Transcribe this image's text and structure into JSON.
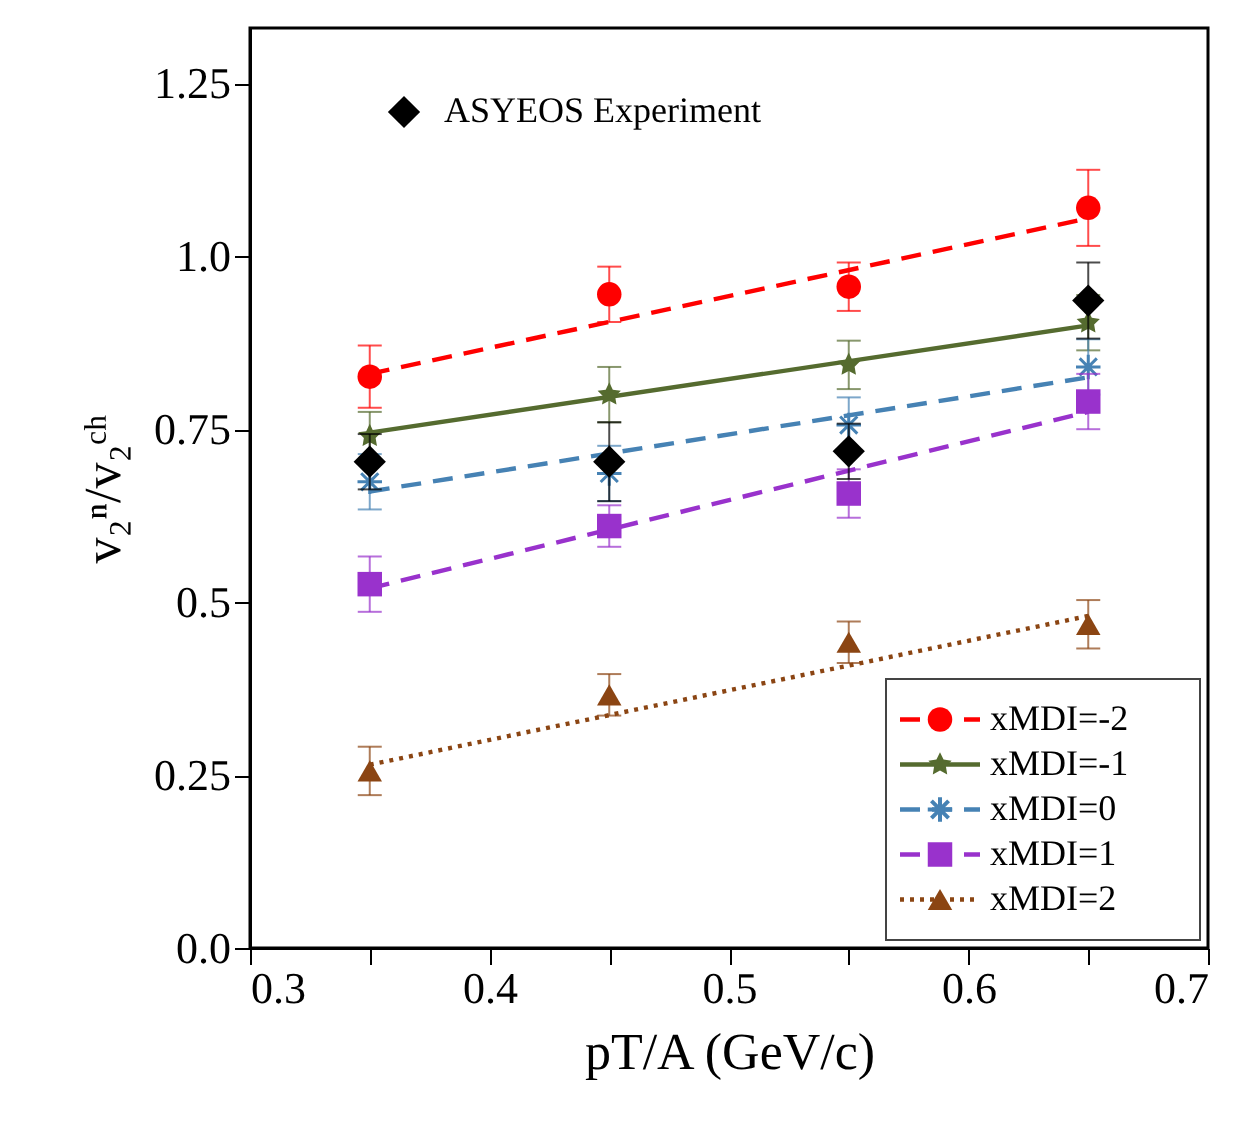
{
  "chart_data": {
    "type": "scatter",
    "xlabel": "pT/A (GeV/c)",
    "ylabel": "v₂ⁿ/v₂ᶜʰ",
    "xlim": [
      0.3,
      0.7
    ],
    "ylim": [
      0,
      1.33
    ],
    "xticks": [
      {
        "value": 0.3,
        "label": "0.3"
      },
      {
        "value": 0.35,
        "label": null
      },
      {
        "value": 0.4,
        "label": "0.4"
      },
      {
        "value": 0.45,
        "label": null
      },
      {
        "value": 0.5,
        "label": "0.5"
      },
      {
        "value": 0.55,
        "label": null
      },
      {
        "value": 0.6,
        "label": "0.6"
      },
      {
        "value": 0.65,
        "label": null
      },
      {
        "value": 0.7,
        "label": "0.7"
      }
    ],
    "yticks": [
      {
        "value": 0,
        "label": "0.0"
      },
      0.25,
      0.5,
      0.75,
      {
        "value": 1,
        "label": "1.0"
      },
      1.25
    ],
    "legend": "bottom right",
    "grid": false,
    "series": [
      {
        "type": "line",
        "color": "#ff0000",
        "line_style": "dashed",
        "x": [
          0.35,
          0.65
        ],
        "values": [
          0.83,
          1.055
        ]
      },
      {
        "type": "line",
        "color": "#556b2f",
        "line_style": "solid",
        "x": [
          0.35,
          0.65
        ],
        "values": [
          0.745,
          0.9
        ]
      },
      {
        "type": "line",
        "color": "#4682b4",
        "line_style": "dashed",
        "x": [
          0.35,
          0.65
        ],
        "values": [
          0.66,
          0.825
        ]
      },
      {
        "type": "line",
        "color": "#9932cc",
        "line_style": "dashed",
        "x": [
          0.35,
          0.65
        ],
        "values": [
          0.52,
          0.775
        ]
      },
      {
        "type": "line",
        "color": "#8b4513",
        "line_style": "dotted",
        "x": [
          0.35,
          0.65
        ],
        "values": [
          0.265,
          0.48
        ]
      },
      {
        "name": "xMDI=-2",
        "color": "#ff0000",
        "marker": "circle",
        "line_style": "dashed",
        "x": [
          0.35,
          0.45,
          0.55,
          0.65
        ],
        "values": [
          0.826,
          0.945,
          0.956,
          1.07
        ],
        "errors": [
          0.045,
          0.04,
          0.035,
          0.055
        ]
      },
      {
        "name": "xMDI=-1",
        "color": "#556b2f",
        "marker": "star",
        "line_style": "solid",
        "x": [
          0.35,
          0.45,
          0.55,
          0.65
        ],
        "values": [
          0.74,
          0.8,
          0.843,
          0.904
        ],
        "errors": [
          0.035,
          0.04,
          0.035,
          0.04
        ]
      },
      {
        "name": "xMDI=0",
        "color": "#4682b4",
        "marker": "cross",
        "line_style": "dashed",
        "x": [
          0.35,
          0.45,
          0.55,
          0.65
        ],
        "values": [
          0.674,
          0.686,
          0.756,
          0.84
        ],
        "errors": [
          0.04,
          0.04,
          0.04,
          0.04
        ]
      },
      {
        "name": "xMDI=1",
        "color": "#9932cc",
        "marker": "square",
        "line_style": "dashed",
        "x": [
          0.35,
          0.45,
          0.55,
          0.65
        ],
        "values": [
          0.526,
          0.61,
          0.657,
          0.79
        ],
        "errors": [
          0.04,
          0.03,
          0.035,
          0.04
        ]
      },
      {
        "name": "xMDI=2",
        "color": "#8b4513",
        "marker": "triangle",
        "line_style": "dotted",
        "x": [
          0.35,
          0.45,
          0.55,
          0.65
        ],
        "values": [
          0.256,
          0.366,
          0.442,
          0.468
        ],
        "errors": [
          0.035,
          0.03,
          0.03,
          0.035
        ]
      },
      {
        "name": "ASYEOS Experiment",
        "color": "#000000",
        "marker": "diamond",
        "x": [
          0.35,
          0.45,
          0.55,
          0.65
        ],
        "values": [
          0.703,
          0.703,
          0.718,
          0.936
        ],
        "errors": [
          0.04,
          0.057,
          0.04,
          0.055
        ]
      }
    ]
  }
}
